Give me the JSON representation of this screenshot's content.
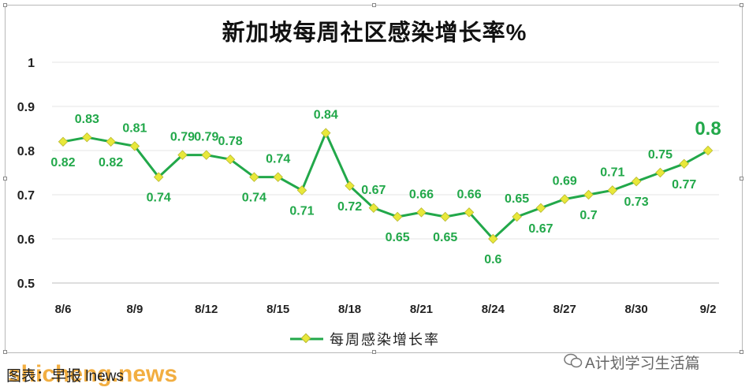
{
  "title": "新加坡每周社区感染增长率%",
  "legend_label": "每周感染增长率",
  "source_note": "图表：早报 lnews",
  "watermark": "shicheng.news",
  "wechat_credit": "A计划学习生活篇",
  "colors": {
    "line": "#22a84a",
    "marker": "#e8e83a",
    "label": "#22a84a",
    "grid": "#e6e6e6"
  },
  "chart_data": {
    "type": "line",
    "title": "新加坡每周社区感染增长率%",
    "xlabel": "",
    "ylabel": "",
    "ylim": [
      0.5,
      1
    ],
    "yticks": [
      "0.5",
      "0.6",
      "0.7",
      "0.8",
      "0.9",
      "1"
    ],
    "grid": true,
    "legend": "bottom",
    "x_tick_labels": [
      "8/6",
      "8/9",
      "8/12",
      "8/15",
      "8/18",
      "8/21",
      "8/24",
      "8/27",
      "8/30",
      "9/2"
    ],
    "x": [
      "8/6",
      "8/7",
      "8/8",
      "8/9",
      "8/10",
      "8/11",
      "8/12",
      "8/13",
      "8/14",
      "8/15",
      "8/16",
      "8/17",
      "8/18",
      "8/19",
      "8/20",
      "8/21",
      "8/22",
      "8/23",
      "8/24",
      "8/25",
      "8/26",
      "8/27",
      "8/28",
      "8/29",
      "8/30",
      "8/31",
      "9/1",
      "9/2"
    ],
    "series": [
      {
        "name": "每周感染增长率",
        "values": [
          0.82,
          0.83,
          0.82,
          0.81,
          0.74,
          0.79,
          0.79,
          0.78,
          0.74,
          0.74,
          0.71,
          0.84,
          0.72,
          0.67,
          0.65,
          0.66,
          0.65,
          0.66,
          0.6,
          0.65,
          0.67,
          0.69,
          0.7,
          0.71,
          0.73,
          0.75,
          0.77,
          0.8
        ],
        "labels": [
          "0.82",
          "0.83",
          "0.82",
          "0.81",
          "0.74",
          "0.79",
          "0.79",
          "0.78",
          "0.74",
          "0.74",
          "0.71",
          "0.84",
          "0.72",
          "0.67",
          "0.65",
          "0.66",
          "0.65",
          "0.66",
          "0.6",
          "0.65",
          "0.67",
          "0.69",
          "0.7",
          "0.71",
          "0.73",
          "0.75",
          "0.77",
          "0.8"
        ]
      }
    ]
  }
}
